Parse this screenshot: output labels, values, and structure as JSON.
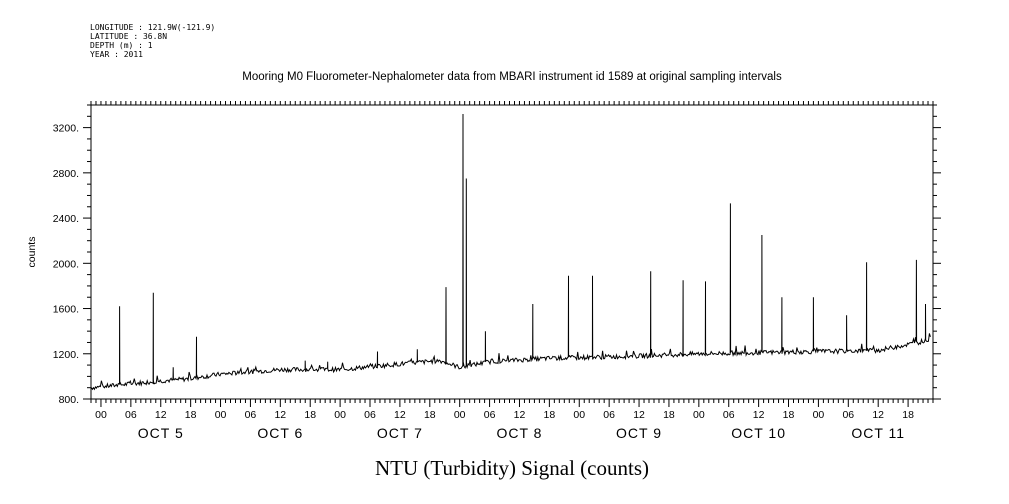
{
  "meta_lines": [
    "LONGITUDE : 121.9W(-121.9)",
    "LATITUDE : 36.8N",
    "DEPTH (m) : 1",
    "YEAR : 2011"
  ],
  "chart_data": {
    "type": "line",
    "title": "Mooring M0 Fluorometer-Nephalometer data from MBARI instrument id 1589 at original sampling intervals",
    "xlabel": "NTU (Turbidity) Signal (counts)",
    "ylabel": "counts",
    "ylim": [
      800,
      3400
    ],
    "yticks": [
      800,
      1200,
      1600,
      2000,
      2400,
      2800,
      3200
    ],
    "ytick_labels": [
      "800.",
      "1200.",
      "1600.",
      "2000.",
      "2400.",
      "2800.",
      "3200."
    ],
    "xlim": [
      "2011-10-04T22:00",
      "2011-10-11T23:00"
    ],
    "xtick_labels": [
      "00",
      "06",
      "12",
      "18",
      "00",
      "06",
      "12",
      "18",
      "00",
      "06",
      "12",
      "18",
      "00",
      "06",
      "12",
      "18",
      "00",
      "06",
      "12",
      "18",
      "00",
      "06",
      "12",
      "18",
      "00",
      "06",
      "12",
      "18"
    ],
    "day_labels": [
      "OCT 5",
      "OCT 6",
      "OCT 7",
      "OCT 8",
      "OCT 9",
      "OCT 10",
      "OCT 11"
    ],
    "grid": false,
    "series": [
      {
        "color": "#000000",
        "baseline": [
          [
            "2011-10-04T22:00",
            900
          ],
          [
            "2011-10-05T12:00",
            960
          ],
          [
            "2011-10-05T18:00",
            980
          ],
          [
            "2011-10-06T00:00",
            1020
          ],
          [
            "2011-10-06T12:00",
            1060
          ],
          [
            "2011-10-07T00:00",
            1060
          ],
          [
            "2011-10-07T12:00",
            1110
          ],
          [
            "2011-10-07T20:00",
            1140
          ],
          [
            "2011-10-08T00:00",
            1080
          ],
          [
            "2011-10-08T06:00",
            1130
          ],
          [
            "2011-10-08T18:00",
            1160
          ],
          [
            "2011-10-09T12:00",
            1180
          ],
          [
            "2011-10-10T00:00",
            1200
          ],
          [
            "2011-10-10T12:00",
            1210
          ],
          [
            "2011-10-11T12:00",
            1230
          ],
          [
            "2011-10-11T20:00",
            1300
          ],
          [
            "2011-10-11T22:30",
            1330
          ]
        ],
        "spikes": [
          [
            "2011-10-05T03:45",
            1620
          ],
          [
            "2011-10-05T10:30",
            1740
          ],
          [
            "2011-10-05T14:30",
            1080
          ],
          [
            "2011-10-05T19:10",
            1350
          ],
          [
            "2011-10-06T17:00",
            1140
          ],
          [
            "2011-10-06T21:30",
            1130
          ],
          [
            "2011-10-07T07:30",
            1220
          ],
          [
            "2011-10-07T15:30",
            1240
          ],
          [
            "2011-10-07T21:15",
            1790
          ],
          [
            "2011-10-08T00:40",
            3320
          ],
          [
            "2011-10-08T01:20",
            2750
          ],
          [
            "2011-10-08T05:10",
            1400
          ],
          [
            "2011-10-08T14:40",
            1640
          ],
          [
            "2011-10-08T21:50",
            1890
          ],
          [
            "2011-10-09T02:40",
            1890
          ],
          [
            "2011-10-09T14:20",
            1930
          ],
          [
            "2011-10-09T20:50",
            1850
          ],
          [
            "2011-10-10T01:20",
            1840
          ],
          [
            "2011-10-10T06:20",
            2530
          ],
          [
            "2011-10-10T12:40",
            2250
          ],
          [
            "2011-10-10T16:40",
            1700
          ],
          [
            "2011-10-10T23:00",
            1700
          ],
          [
            "2011-10-11T05:40",
            1540
          ],
          [
            "2011-10-11T09:40",
            2010
          ],
          [
            "2011-10-11T19:40",
            2030
          ],
          [
            "2011-10-11T21:30",
            1640
          ]
        ]
      }
    ]
  }
}
